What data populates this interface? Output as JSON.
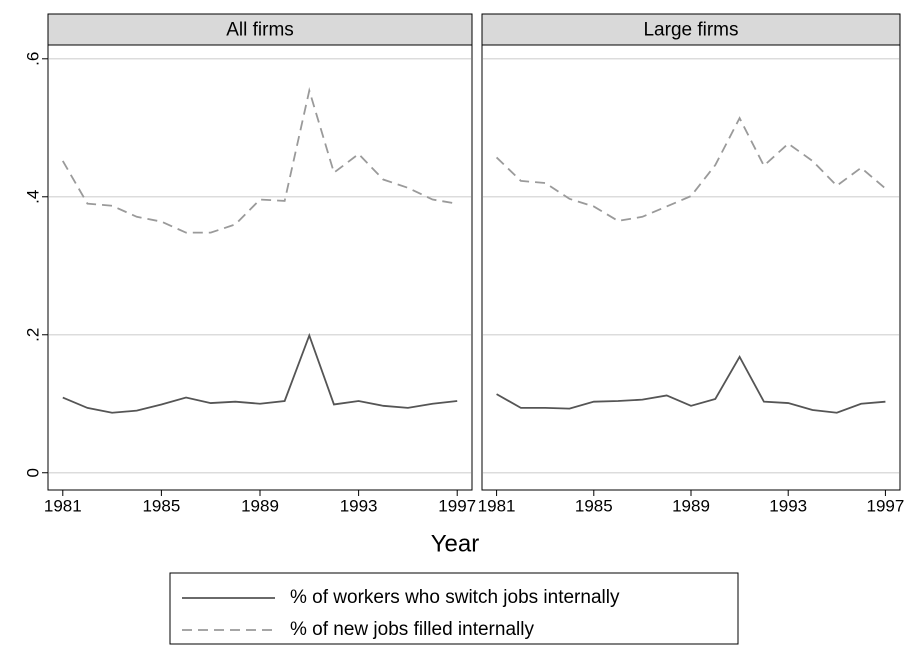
{
  "chart_data": [
    {
      "type": "line",
      "title": "All firms",
      "xlabel": "Year",
      "x": [
        1981,
        1982,
        1983,
        1984,
        1985,
        1986,
        1987,
        1988,
        1989,
        1990,
        1991,
        1992,
        1993,
        1994,
        1995,
        1996,
        1997
      ],
      "series": [
        {
          "name": "% of workers who switch jobs internally",
          "color": "#555555",
          "dash": "none",
          "values": [
            0.109,
            0.094,
            0.087,
            0.09,
            0.099,
            0.109,
            0.101,
            0.103,
            0.1,
            0.104,
            0.199,
            0.099,
            0.104,
            0.097,
            0.094,
            0.1,
            0.104
          ]
        },
        {
          "name": "% of new jobs filled internally",
          "color": "#9a9a9a",
          "dash": "10,6",
          "values": [
            0.452,
            0.39,
            0.387,
            0.371,
            0.364,
            0.348,
            0.348,
            0.36,
            0.396,
            0.394,
            0.554,
            0.435,
            0.462,
            0.425,
            0.413,
            0.396,
            0.39
          ]
        }
      ],
      "xlim": [
        1980.4,
        1997.6
      ],
      "xticks": [
        1981,
        1985,
        1989,
        1993,
        1997
      ],
      "ylim": [
        -0.025,
        0.62
      ],
      "yticks": [
        {
          "value": 0,
          "label": "0"
        },
        {
          "value": 0.2,
          "label": ".2"
        },
        {
          "value": 0.4,
          "label": ".4"
        },
        {
          "value": 0.6,
          "label": ".6"
        }
      ],
      "grid": true
    },
    {
      "type": "line",
      "title": "Large firms",
      "x": [
        1981,
        1982,
        1983,
        1984,
        1985,
        1986,
        1987,
        1988,
        1989,
        1990,
        1991,
        1992,
        1993,
        1994,
        1995,
        1996,
        1997
      ],
      "series": [
        {
          "color": "#555555",
          "dash": "none",
          "values": [
            0.114,
            0.094,
            0.094,
            0.093,
            0.103,
            0.104,
            0.106,
            0.112,
            0.097,
            0.107,
            0.168,
            0.103,
            0.101,
            0.091,
            0.087,
            0.1,
            0.103
          ]
        },
        {
          "color": "#9a9a9a",
          "dash": "10,6",
          "values": [
            0.457,
            0.423,
            0.42,
            0.397,
            0.386,
            0.365,
            0.371,
            0.386,
            0.401,
            0.446,
            0.514,
            0.445,
            0.477,
            0.452,
            0.416,
            0.442,
            0.412
          ]
        }
      ],
      "xlim": [
        1980.4,
        1997.6
      ],
      "xticks": [
        1981,
        1985,
        1989,
        1993,
        1997
      ],
      "ylim": [
        -0.025,
        0.62
      ],
      "yticks": [
        0,
        0.2,
        0.4,
        0.6
      ],
      "show_ytick_labels": false,
      "grid": true
    }
  ]
}
